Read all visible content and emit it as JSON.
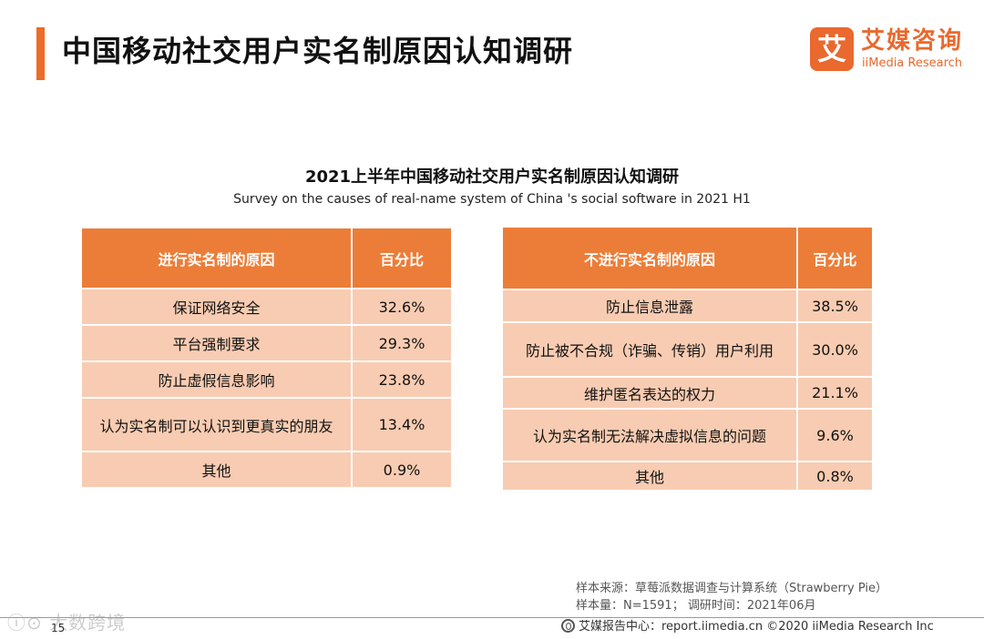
{
  "page": {
    "title": "中国移动社交用户实名制原因认知调研",
    "page_number": "15"
  },
  "logo": {
    "mark": "艾",
    "cn": "艾媒咨询",
    "en": "iiMedia Research"
  },
  "chart": {
    "title": "2021上半年中国移动社交用户实名制原因认知调研",
    "subtitle": "Survey on the causes of real-name system of China 's social software in 2021 H1"
  },
  "left_table": {
    "headers": [
      "进行实名制的原因",
      "百分比"
    ],
    "rows": [
      {
        "reason": "保证网络安全",
        "percent": "32.6%"
      },
      {
        "reason": "平台强制要求",
        "percent": "29.3%"
      },
      {
        "reason": "防止虚假信息影响",
        "percent": "23.8%"
      },
      {
        "reason": "认为实名制可以认识到更真实的朋友",
        "percent": "13.4%"
      },
      {
        "reason": "其他",
        "percent": "0.9%"
      }
    ]
  },
  "right_table": {
    "headers": [
      "不进行实名制的原因",
      "百分比"
    ],
    "rows": [
      {
        "reason": "防止信息泄露",
        "percent": "38.5%"
      },
      {
        "reason": "防止被不合规（诈骗、传销）用户利用",
        "percent": "30.0%"
      },
      {
        "reason": "维护匿名表达的权力",
        "percent": "21.1%"
      },
      {
        "reason": "认为实名制无法解决虚拟信息的问题",
        "percent": "9.6%"
      },
      {
        "reason": "其他",
        "percent": "0.8%"
      }
    ]
  },
  "source": {
    "line1": "样本来源：草莓派数据调查与计算系统（Strawberry Pie）",
    "line2": "样本量：N=1591；  调研时间：2021年06月"
  },
  "footer": {
    "text": "艾媒报告中心：report.iimedia.cn   ©2020  iiMedia Research  Inc"
  },
  "watermark": {
    "text": "ⓘ⊙ 大数跨境"
  },
  "colors": {
    "accent": "#ec6d28",
    "header_fill": "#ec7d38",
    "cell_fill": "#f8ccb2"
  }
}
